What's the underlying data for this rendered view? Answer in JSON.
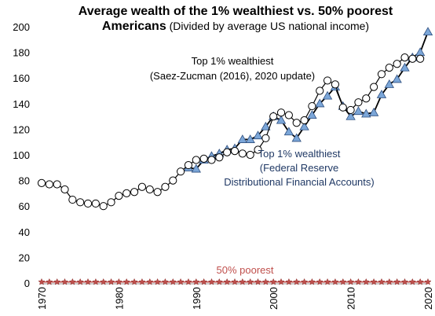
{
  "chart_data": {
    "type": "line",
    "title_bold_1": "Average wealth of the 1% wealthiest vs. 50% poorest",
    "title_bold_2": "Americans",
    "title_normal_2": " (Divided by average US national income)",
    "xlim": [
      1970,
      2020
    ],
    "ylim": [
      0,
      200
    ],
    "x_ticks": [
      1970,
      1980,
      1990,
      2000,
      2010,
      2020
    ],
    "y_ticks": [
      0,
      20,
      40,
      60,
      80,
      100,
      120,
      140,
      160,
      180,
      200
    ],
    "grid": false,
    "series": [
      {
        "name": "Top 1% wealthiest (Saez-Zucman (2016), 2020 update)",
        "label_lines": [
          "Top 1% wealthiest",
          "(Saez-Zucman (2016), 2020 update)"
        ],
        "marker": "circle",
        "color": "#000000",
        "x": [
          1970,
          1971,
          1972,
          1973,
          1974,
          1975,
          1976,
          1977,
          1978,
          1979,
          1980,
          1981,
          1982,
          1983,
          1984,
          1985,
          1986,
          1987,
          1988,
          1989,
          1990,
          1991,
          1992,
          1993,
          1994,
          1995,
          1996,
          1997,
          1998,
          1999,
          2000,
          2001,
          2002,
          2003,
          2004,
          2005,
          2006,
          2007,
          2008,
          2009,
          2010,
          2011,
          2012,
          2013,
          2014,
          2015,
          2016,
          2017,
          2018,
          2019
        ],
        "y": [
          78,
          77,
          77,
          73,
          65,
          63,
          62,
          62,
          60,
          63,
          68,
          70,
          71,
          75,
          73,
          71,
          75,
          80,
          87,
          92,
          96,
          97,
          96,
          98,
          102,
          103,
          101,
          100,
          104,
          113,
          130,
          133,
          131,
          125,
          127,
          138,
          150,
          158,
          155,
          137,
          135,
          141,
          144,
          153,
          163,
          168,
          171,
          176,
          175,
          175
        ]
      },
      {
        "name": "Top 1% wealthiest (Federal Reserve Distributional Financial Accounts)",
        "label_lines": [
          "Top 1% wealthiest",
          "(Federal Reserve",
          "Distributional Financial Accounts)"
        ],
        "marker": "triangle",
        "color": "#7ba6d8",
        "x": [
          1989,
          1990,
          1991,
          1992,
          1993,
          1994,
          1995,
          1996,
          1997,
          1998,
          1999,
          2000,
          2001,
          2002,
          2003,
          2004,
          2005,
          2006,
          2007,
          2008,
          2009,
          2010,
          2011,
          2012,
          2013,
          2014,
          2015,
          2016,
          2017,
          2018,
          2019,
          2020
        ],
        "y": [
          90,
          89,
          96,
          99,
          101,
          104,
          105,
          112,
          112,
          115,
          122,
          130,
          127,
          118,
          113,
          122,
          131,
          140,
          146,
          153,
          138,
          130,
          134,
          132,
          133,
          147,
          155,
          159,
          168,
          176,
          180,
          196
        ]
      },
      {
        "name": "50% poorest",
        "label_lines": [
          "50% poorest"
        ],
        "marker": "star",
        "color": "#c0504d",
        "x": [
          1970,
          1971,
          1972,
          1973,
          1974,
          1975,
          1976,
          1977,
          1978,
          1979,
          1980,
          1981,
          1982,
          1983,
          1984,
          1985,
          1986,
          1987,
          1988,
          1989,
          1990,
          1991,
          1992,
          1993,
          1994,
          1995,
          1996,
          1997,
          1998,
          1999,
          2000,
          2001,
          2002,
          2003,
          2004,
          2005,
          2006,
          2007,
          2008,
          2009,
          2010,
          2011,
          2012,
          2013,
          2014,
          2015,
          2016,
          2017,
          2018,
          2019,
          2020
        ],
        "y": [
          0.8,
          0.8,
          0.8,
          0.8,
          0.8,
          0.8,
          0.8,
          0.8,
          0.8,
          0.8,
          0.8,
          0.8,
          0.8,
          0.8,
          0.8,
          0.8,
          0.8,
          0.8,
          0.8,
          0.8,
          0.8,
          0.8,
          0.8,
          0.8,
          0.8,
          0.8,
          0.8,
          0.8,
          0.8,
          0.8,
          0.8,
          0.8,
          0.8,
          0.8,
          0.8,
          0.8,
          0.8,
          0.8,
          0.8,
          0.8,
          0.8,
          0.8,
          0.8,
          0.8,
          0.8,
          0.8,
          0.8,
          0.8,
          0.8,
          0.8,
          0.8
        ]
      }
    ]
  }
}
